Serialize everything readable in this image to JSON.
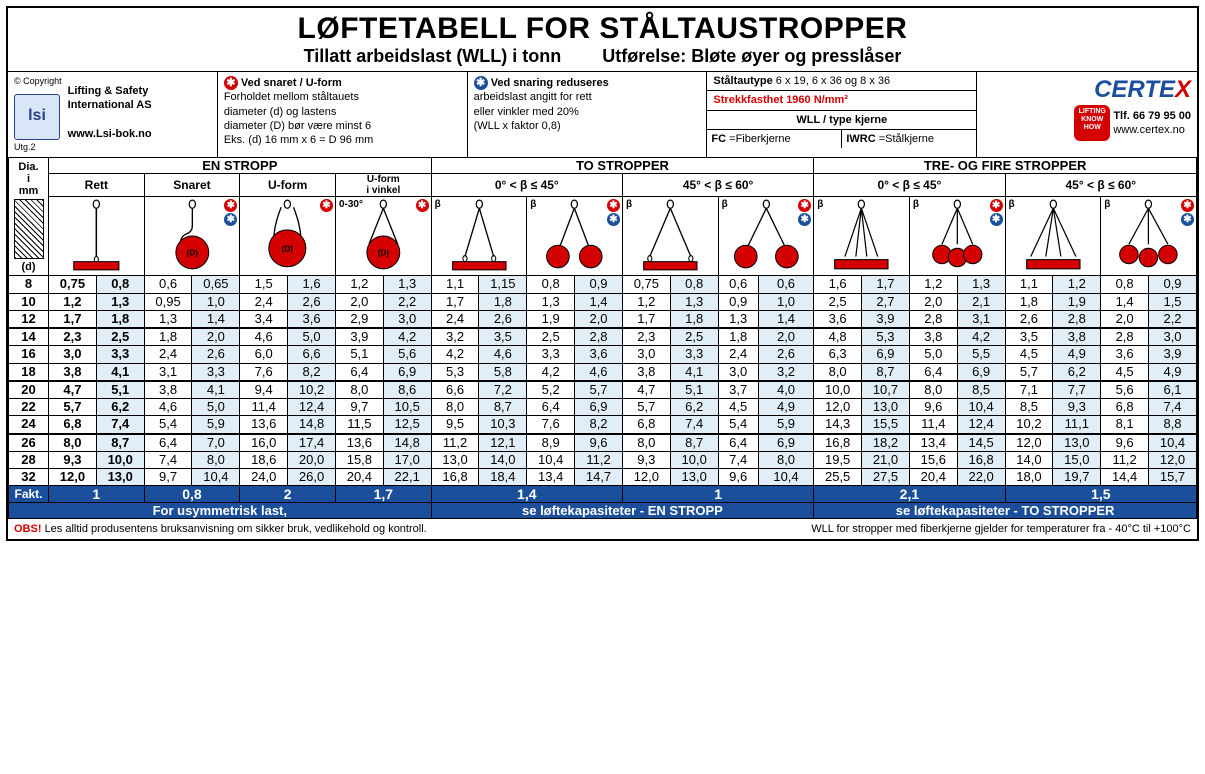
{
  "title": "LØFTETABELL FOR STÅLTAUSTROPPER",
  "subtitle_left": "Tillatt arbeidslast (WLL) i tonn",
  "subtitle_right": "Utførelse: Bløte øyer og presslåser",
  "copyright": "© Copyright",
  "lsi": {
    "line1": "Lifting & Safety",
    "line2": "International AS",
    "url": "www.Lsi-bok.no",
    "logo": "lsi",
    "utg": "Utg.2"
  },
  "box_snaret": {
    "title": "Ved snaret / U-form",
    "l1": "Forholdet mellom ståltauets",
    "l2": "diameter (d) og lastens",
    "l3": "diameter (D) bør være minst 6",
    "l4": "Eks. (d) 16 mm x 6 = D 96 mm"
  },
  "box_snaring": {
    "title": "Ved snaring reduseres",
    "l1": "arbeidslast angitt for rett",
    "l2": "eller vinkler med 20%",
    "l3": "(WLL x faktor 0,8)"
  },
  "box_type": {
    "r1a": "Ståltautype",
    "r1b": "6 x 19, 6 x 36 og 8 x 36",
    "r2a": "Strekkfasthet",
    "r2b": "1960 N/mm²",
    "r3": "WLL / type kjerne",
    "r4a": "FC =Fiberkjerne",
    "r4b": "IWRC =Stålkjerne"
  },
  "certex": {
    "name": "CERTEX",
    "tel": "Tlf. 66 79 95 00",
    "url": "www.certex.no",
    "kh": "LIFTING\nKNOW\nHOW"
  },
  "table": {
    "dia_label_top": "Dia.\ni\nmm",
    "dia_label_bot": "(d)",
    "groups": [
      "EN STROPP",
      "TO STROPPER",
      "TRE- OG FIRE STROPPER"
    ],
    "sub_en": [
      "Rett",
      "Snaret",
      "U-form",
      "U-form\ni vinkel"
    ],
    "sub_to": [
      "0° < β ≤ 45°",
      "45° < β ≤ 60°"
    ],
    "sub_tre": [
      "0° < β ≤ 45°",
      "45° < β ≤ 60°"
    ],
    "angle_small": "0-30°",
    "beta": "β",
    "diameters": [
      8,
      10,
      12,
      14,
      16,
      18,
      20,
      22,
      24,
      26,
      28,
      32
    ],
    "sep_after": [
      12,
      18,
      24
    ],
    "bold_cols": [
      0,
      1
    ],
    "shade_cols": [
      1,
      3,
      5,
      7,
      9,
      11,
      13,
      15,
      17,
      19,
      21,
      23
    ],
    "rows": [
      [
        "0,75",
        "0,8",
        "0,6",
        "0,65",
        "1,5",
        "1,6",
        "1,2",
        "1,3",
        "1,1",
        "1,15",
        "0,8",
        "0,9",
        "0,75",
        "0,8",
        "0,6",
        "0,6",
        "1,6",
        "1,7",
        "1,2",
        "1,3",
        "1,1",
        "1,2",
        "0,8",
        "0,9"
      ],
      [
        "1,2",
        "1,3",
        "0,95",
        "1,0",
        "2,4",
        "2,6",
        "2,0",
        "2,2",
        "1,7",
        "1,8",
        "1,3",
        "1,4",
        "1,2",
        "1,3",
        "0,9",
        "1,0",
        "2,5",
        "2,7",
        "2,0",
        "2,1",
        "1,8",
        "1,9",
        "1,4",
        "1,5"
      ],
      [
        "1,7",
        "1,8",
        "1,3",
        "1,4",
        "3,4",
        "3,6",
        "2,9",
        "3,0",
        "2,4",
        "2,6",
        "1,9",
        "2,0",
        "1,7",
        "1,8",
        "1,3",
        "1,4",
        "3,6",
        "3,9",
        "2,8",
        "3,1",
        "2,6",
        "2,8",
        "2,0",
        "2,2"
      ],
      [
        "2,3",
        "2,5",
        "1,8",
        "2,0",
        "4,6",
        "5,0",
        "3,9",
        "4,2",
        "3,2",
        "3,5",
        "2,5",
        "2,8",
        "2,3",
        "2,5",
        "1,8",
        "2,0",
        "4,8",
        "5,3",
        "3,8",
        "4,2",
        "3,5",
        "3,8",
        "2,8",
        "3,0"
      ],
      [
        "3,0",
        "3,3",
        "2,4",
        "2,6",
        "6,0",
        "6,6",
        "5,1",
        "5,6",
        "4,2",
        "4,6",
        "3,3",
        "3,6",
        "3,0",
        "3,3",
        "2,4",
        "2,6",
        "6,3",
        "6,9",
        "5,0",
        "5,5",
        "4,5",
        "4,9",
        "3,6",
        "3,9"
      ],
      [
        "3,8",
        "4,1",
        "3,1",
        "3,3",
        "7,6",
        "8,2",
        "6,4",
        "6,9",
        "5,3",
        "5,8",
        "4,2",
        "4,6",
        "3,8",
        "4,1",
        "3,0",
        "3,2",
        "8,0",
        "8,7",
        "6,4",
        "6,9",
        "5,7",
        "6,2",
        "4,5",
        "4,9"
      ],
      [
        "4,7",
        "5,1",
        "3,8",
        "4,1",
        "9,4",
        "10,2",
        "8,0",
        "8,6",
        "6,6",
        "7,2",
        "5,2",
        "5,7",
        "4,7",
        "5,1",
        "3,7",
        "4,0",
        "10,0",
        "10,7",
        "8,0",
        "8,5",
        "7,1",
        "7,7",
        "5,6",
        "6,1"
      ],
      [
        "5,7",
        "6,2",
        "4,6",
        "5,0",
        "11,4",
        "12,4",
        "9,7",
        "10,5",
        "8,0",
        "8,7",
        "6,4",
        "6,9",
        "5,7",
        "6,2",
        "4,5",
        "4,9",
        "12,0",
        "13,0",
        "9,6",
        "10,4",
        "8,5",
        "9,3",
        "6,8",
        "7,4"
      ],
      [
        "6,8",
        "7,4",
        "5,4",
        "5,9",
        "13,6",
        "14,8",
        "11,5",
        "12,5",
        "9,5",
        "10,3",
        "7,6",
        "8,2",
        "6,8",
        "7,4",
        "5,4",
        "5,9",
        "14,3",
        "15,5",
        "11,4",
        "12,4",
        "10,2",
        "11,1",
        "8,1",
        "8,8"
      ],
      [
        "8,0",
        "8,7",
        "6,4",
        "7,0",
        "16,0",
        "17,4",
        "13,6",
        "14,8",
        "11,2",
        "12,1",
        "8,9",
        "9,6",
        "8,0",
        "8,7",
        "6,4",
        "6,9",
        "16,8",
        "18,2",
        "13,4",
        "14,5",
        "12,0",
        "13,0",
        "9,6",
        "10,4"
      ],
      [
        "9,3",
        "10,0",
        "7,4",
        "8,0",
        "18,6",
        "20,0",
        "15,8",
        "17,0",
        "13,0",
        "14,0",
        "10,4",
        "11,2",
        "9,3",
        "10,0",
        "7,4",
        "8,0",
        "19,5",
        "21,0",
        "15,6",
        "16,8",
        "14,0",
        "15,0",
        "11,2",
        "12,0"
      ],
      [
        "12,0",
        "13,0",
        "9,7",
        "10,4",
        "24,0",
        "26,0",
        "20,4",
        "22,1",
        "16,8",
        "18,4",
        "13,4",
        "14,7",
        "12,0",
        "13,0",
        "9,6",
        "10,4",
        "25,5",
        "27,5",
        "20,4",
        "22,0",
        "18,0",
        "19,7",
        "14,4",
        "15,7"
      ]
    ],
    "fakt_label": "Fakt.",
    "fakt": [
      "1",
      "0,8",
      "2",
      "1,7",
      "1,4",
      "1",
      "2,1",
      "1,5"
    ],
    "fakt_span": [
      2,
      2,
      2,
      2,
      4,
      4,
      4,
      4
    ],
    "note1": "For usymmetrisk last,",
    "note2": "se løftekapasiteter - EN STROPP",
    "note3": "se løftekapasiteter - TO STROPPER"
  },
  "footer": {
    "obs": "OBS!",
    "left": "Les alltid produsentens bruksanvisning om sikker bruk, vedlikehold og kontroll.",
    "right": "WLL for stropper med fiberkjerne gjelder for temperaturer fra - 40°C  til +100°C"
  },
  "colors": {
    "red": "#d40000",
    "blue_dark": "#1b4f9c",
    "shade": "#e2eef7",
    "sling_red": "#d40000"
  }
}
